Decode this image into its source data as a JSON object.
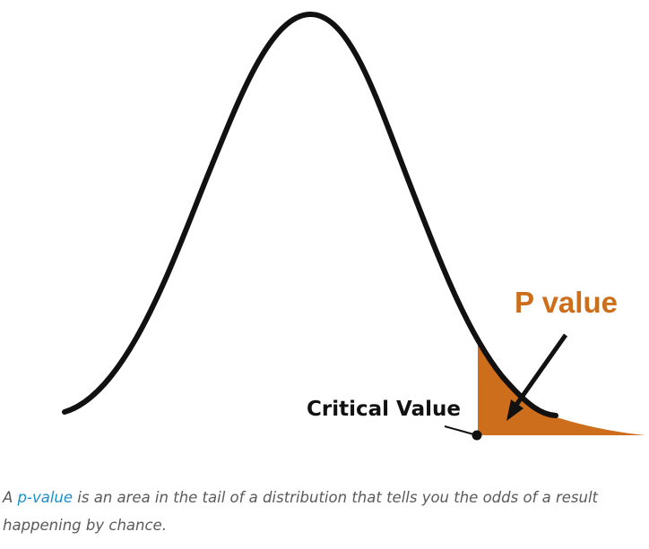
{
  "diagram": {
    "labels": {
      "p_value": "P value",
      "critical_value": "Critical Value"
    },
    "colors": {
      "curve": "#111111",
      "tail_fill": "#cc6e1b",
      "p_label": "#cc6e1b",
      "arrow": "#111111"
    }
  },
  "caption": {
    "prefix": "A ",
    "link_text": "p-value",
    "rest": " is an area in the tail of a distribution that tells you the odds of a result happening by chance."
  }
}
